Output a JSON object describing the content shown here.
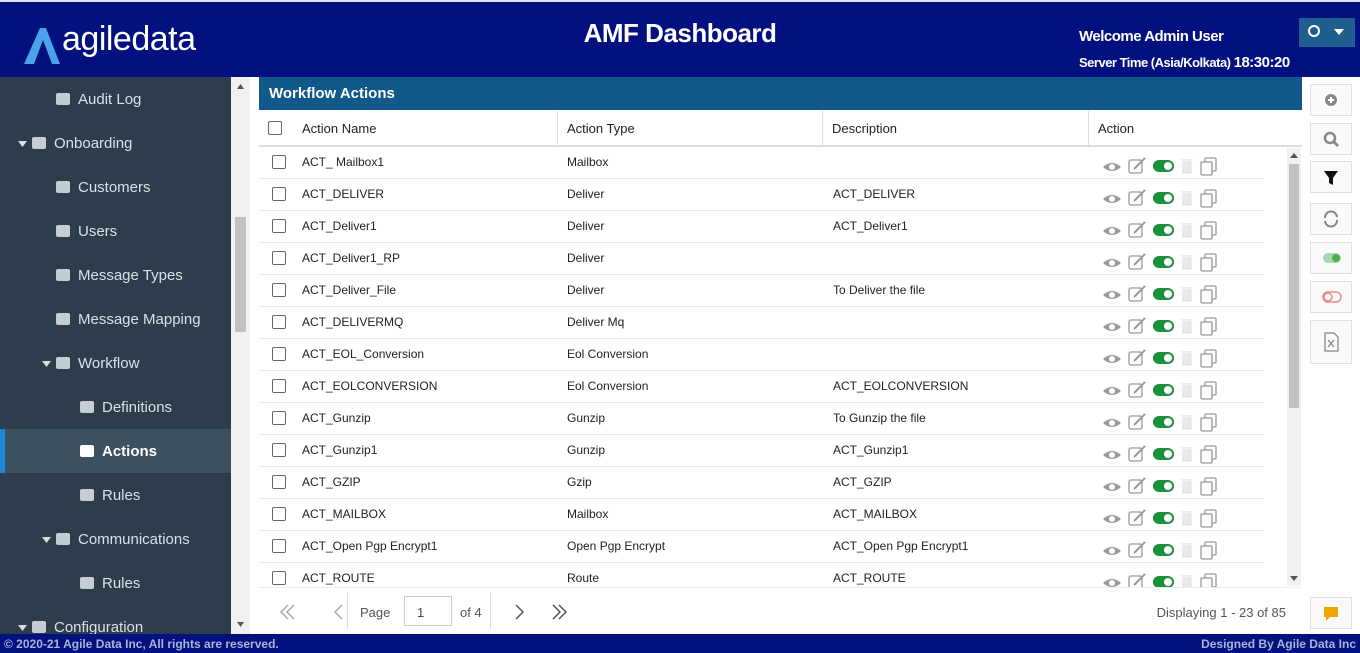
{
  "header": {
    "logo": "agiledata",
    "title": "AMF Dashboard",
    "welcome": "Welcome Admin User",
    "server_time_label": "Server Time (Asia/Kolkata)",
    "server_time": "18:30:20"
  },
  "sidebar": {
    "items": [
      "Audit Log",
      "Onboarding",
      "Customers",
      "Users",
      "Message Types",
      "Message Mapping",
      "Workflow",
      "Definitions",
      "Actions",
      "Rules",
      "Communications",
      "Rules",
      "Configuration"
    ]
  },
  "panel": {
    "title": "Workflow Actions",
    "columns": [
      "Action Name",
      "Action Type",
      "Description",
      "Action"
    ],
    "rows": [
      {
        "name": "ACT_ Mailbox1",
        "type": "Mailbox"
      },
      {
        "name": "ACT_DELIVER",
        "type": "Deliver",
        "description": "ACT_DELIVER"
      },
      {
        "name": "ACT_Deliver1",
        "type": "Deliver",
        "description": "ACT_Deliver1"
      },
      {
        "name": "ACT_Deliver1_RP",
        "type": "Deliver"
      },
      {
        "name": "ACT_Deliver_File",
        "type": "Deliver",
        "description": "To Deliver the file"
      },
      {
        "name": "ACT_DELIVERMQ",
        "type": "Deliver Mq"
      },
      {
        "name": "ACT_EOL_Conversion",
        "type": "Eol Conversion"
      },
      {
        "name": "ACT_EOLCONVERSION",
        "type": "Eol Conversion",
        "description": "ACT_EOLCONVERSION"
      },
      {
        "name": "ACT_Gunzip",
        "type": "Gunzip",
        "description": "To Gunzip the file"
      },
      {
        "name": "ACT_Gunzip1",
        "type": "Gunzip",
        "description": "ACT_Gunzip1"
      },
      {
        "name": "ACT_GZIP",
        "type": "Gzip",
        "description": "ACT_GZIP"
      },
      {
        "name": "ACT_MAILBOX",
        "type": "Mailbox",
        "description": "ACT_MAILBOX"
      },
      {
        "name": "ACT_Open Pgp Encrypt1",
        "type": "Open Pgp Encrypt",
        "description": "ACT_Open Pgp Encrypt1"
      },
      {
        "name": "ACT_ROUTE",
        "type": "Route",
        "description": "ACT_ROUTE"
      }
    ]
  },
  "pager": {
    "page_label": "Page",
    "page": 1,
    "of_pages": "of 4",
    "display": "Displaying 1 - 23 of 85"
  },
  "footer": {
    "copyright": "© 2020-21 Agile Data Inc, All rights are reserved.",
    "designed": "Designed By Agile Data Inc"
  }
}
